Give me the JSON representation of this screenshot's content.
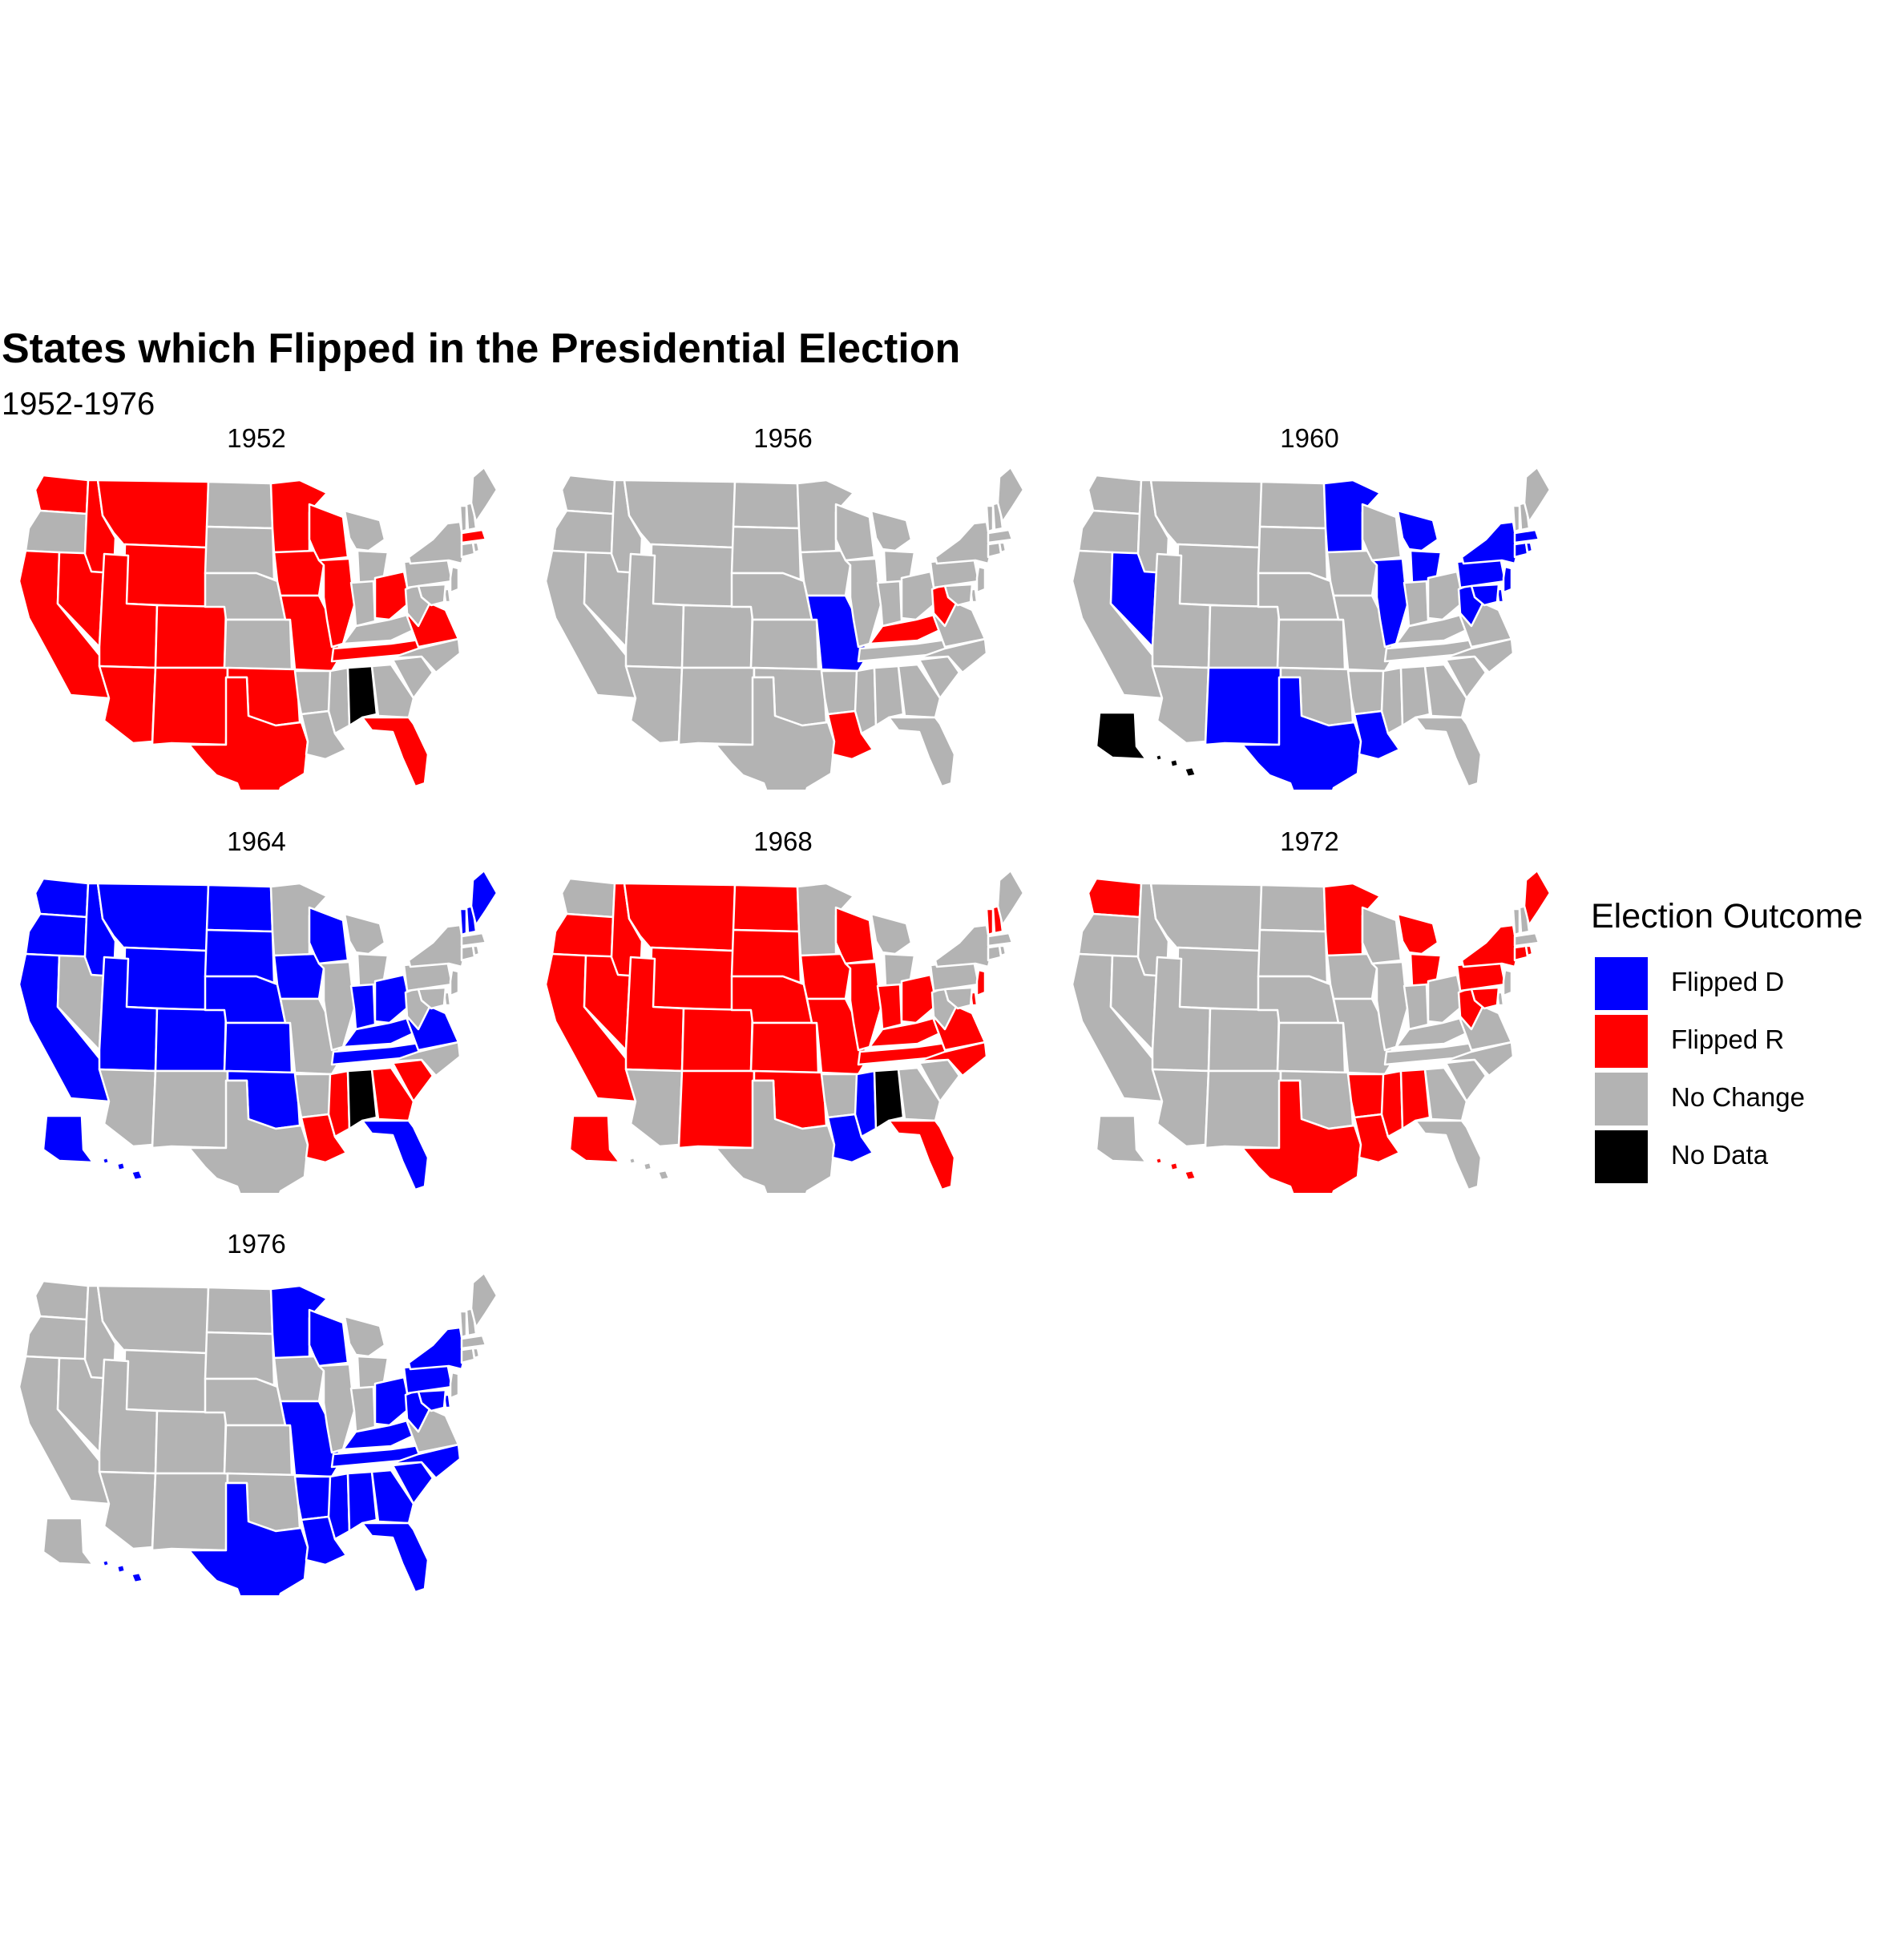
{
  "title": "States which Flipped in the Presidential Election",
  "subtitle": "1952-1976",
  "colors": {
    "Flipped D": "#0000ff",
    "Flipped R": "#ff0000",
    "No Change": "#b3b3b3",
    "No Data": "#000000",
    "border": "#ffffff"
  },
  "legend": {
    "title": "Election Outcome",
    "items": [
      "Flipped D",
      "Flipped R",
      "No Change",
      "No Data"
    ]
  },
  "chart_data": {
    "type": "choropleth-small-multiples",
    "default_category": "No Change",
    "panels": [
      {
        "year": "1952",
        "Flipped R": [
          "WA",
          "ID",
          "MT",
          "NV",
          "UT",
          "WY",
          "CA",
          "AZ",
          "CO",
          "NM",
          "OK",
          "TX",
          "MN",
          "IA",
          "MO",
          "WI",
          "IL",
          "OH",
          "TN",
          "VA",
          "FL",
          "MA"
        ],
        "No Data": [
          "AL"
        ]
      },
      {
        "year": "1956",
        "Flipped D": [
          "MO"
        ],
        "Flipped R": [
          "LA",
          "KY",
          "WV"
        ]
      },
      {
        "year": "1960",
        "Flipped D": [
          "NV",
          "NM",
          "TX",
          "LA",
          "MN",
          "MI",
          "IL",
          "NY",
          "PA",
          "NJ",
          "WV",
          "CT",
          "RI",
          "MA",
          "DE",
          "MD"
        ],
        "No Data": [
          "AK",
          "HI"
        ]
      },
      {
        "year": "1964",
        "Flipped D": [
          "WA",
          "OR",
          "CA",
          "ID",
          "MT",
          "WY",
          "UT",
          "CO",
          "ND",
          "SD",
          "NE",
          "KS",
          "OK",
          "IA",
          "WI",
          "IN",
          "OH",
          "KY",
          "TN",
          "VA",
          "FL",
          "ME",
          "VT",
          "NH",
          "AK",
          "HI"
        ],
        "Flipped R": [
          "LA",
          "MS",
          "GA",
          "SC"
        ],
        "No Data": [
          "AL"
        ]
      },
      {
        "year": "1968",
        "Flipped D": [
          "LA",
          "MS"
        ],
        "Flipped R": [
          "OR",
          "CA",
          "NV",
          "ID",
          "MT",
          "WY",
          "UT",
          "CO",
          "NM",
          "ND",
          "SD",
          "NE",
          "KS",
          "OK",
          "MO",
          "IA",
          "WI",
          "IL",
          "IN",
          "OH",
          "KY",
          "TN",
          "NC",
          "VA",
          "FL",
          "VT",
          "NH",
          "NJ",
          "DE",
          "AK"
        ],
        "No Data": [
          "AL"
        ]
      },
      {
        "year": "1972",
        "Flipped R": [
          "WA",
          "MN",
          "MI",
          "TX",
          "AR",
          "LA",
          "MS",
          "AL",
          "NY",
          "PA",
          "WV",
          "MD",
          "ME",
          "RI",
          "CT",
          "HI"
        ]
      },
      {
        "year": "1976",
        "Flipped D": [
          "MN",
          "WI",
          "MO",
          "AR",
          "LA",
          "TX",
          "MS",
          "AL",
          "GA",
          "FL",
          "SC",
          "NC",
          "TN",
          "KY",
          "OH",
          "WV",
          "PA",
          "NY",
          "DE",
          "MD",
          "HI"
        ]
      }
    ]
  }
}
